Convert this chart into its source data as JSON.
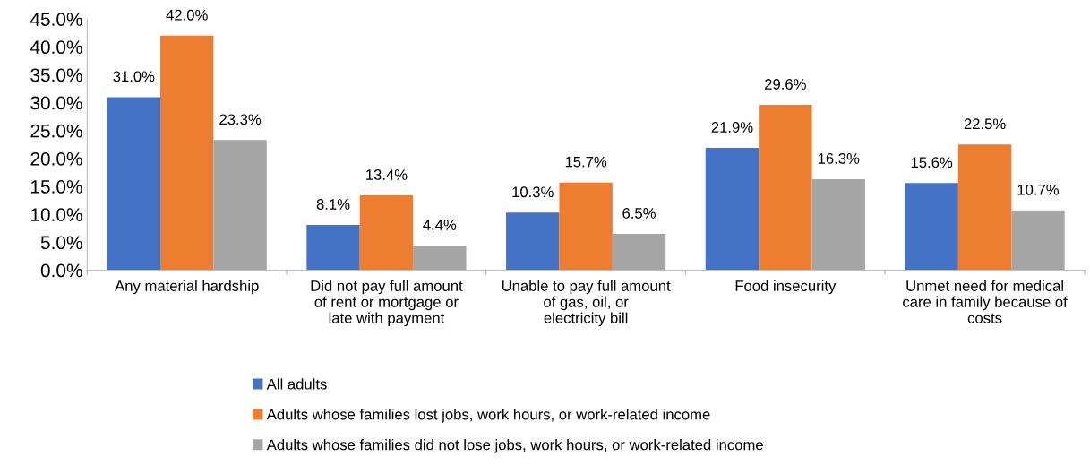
{
  "chart_data": {
    "type": "bar",
    "categories": [
      "Any material hardship",
      "Did not pay full amount of rent or mortgage or late with payment",
      "Unable to pay full amount of gas, oil, or electricity bill",
      "Food insecurity",
      "Unmet need for medical care in family because of costs"
    ],
    "series": [
      {
        "name": "All adults",
        "color": "#4472c4",
        "values": [
          31.0,
          8.1,
          10.3,
          21.9,
          15.6
        ],
        "value_labels": [
          "31.0%",
          "8.1%",
          "10.3%",
          "21.9%",
          "15.6%"
        ]
      },
      {
        "name": "Adults whose families lost jobs, work hours, or work-related income",
        "color": "#ed7d31",
        "values": [
          42.0,
          13.4,
          15.7,
          29.6,
          22.5
        ],
        "value_labels": [
          "42.0%",
          "13.4%",
          "15.7%",
          "29.6%",
          "22.5%"
        ]
      },
      {
        "name": "Adults whose families did not lose jobs, work hours, or work-related income",
        "color": "#a5a5a5",
        "values": [
          23.3,
          4.4,
          6.5,
          16.3,
          10.7
        ],
        "value_labels": [
          "23.3%",
          "4.4%",
          "6.5%",
          "16.3%",
          "10.7%"
        ]
      }
    ],
    "ylim": [
      0,
      45
    ],
    "yticks": [
      {
        "value": 0,
        "label": "0.0%"
      },
      {
        "value": 5,
        "label": "5.0%"
      },
      {
        "value": 10,
        "label": "10.0%"
      },
      {
        "value": 15,
        "label": "15.0%"
      },
      {
        "value": 20,
        "label": "20.0%"
      },
      {
        "value": 25,
        "label": "25.0%"
      },
      {
        "value": 30,
        "label": "30.0%"
      },
      {
        "value": 35,
        "label": "35.0%"
      },
      {
        "value": 40,
        "label": "40.0%"
      },
      {
        "value": 45,
        "label": "45.0%"
      }
    ],
    "legend": "bottom",
    "grid": false
  }
}
